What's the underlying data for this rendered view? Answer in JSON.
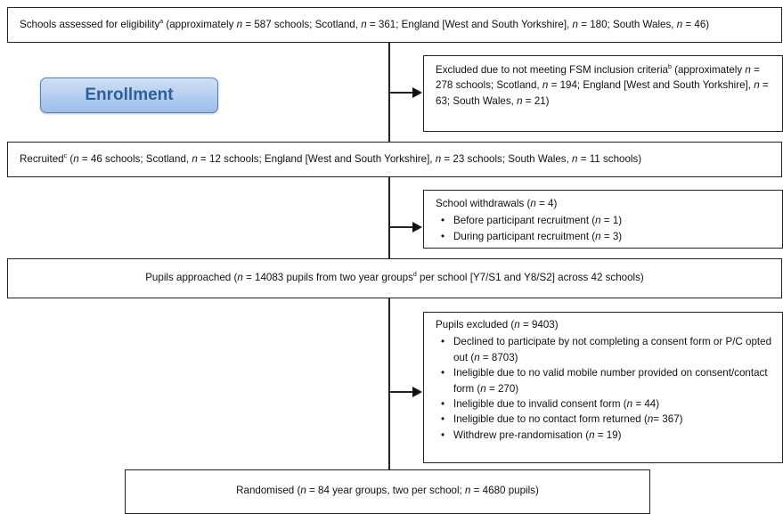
{
  "enrollment_label": "Enrollment",
  "assessed": {
    "pre": "Schools assessed for eligibility",
    "sup": "a",
    "body1": " (approximately ",
    "n_total": "587",
    "body2": " schools; Scotland, ",
    "n_scotland": "361",
    "body3": "; England [West and South Yorkshire], ",
    "n_england": "180",
    "body4": "; South Wales, ",
    "n_wales": "46",
    "tail": ")"
  },
  "excluded_fsm": {
    "pre": "Excluded due to not meeting FSM inclusion criteria",
    "sup": "b",
    "body1": " (approximately ",
    "n_total": "278",
    "body2": " schools; Scotland, ",
    "n_scotland": "194",
    "body3": "; England [West and South Yorkshire], ",
    "n_england": "63",
    "body4": "; South Wales, ",
    "n_wales": "21",
    "tail": ")"
  },
  "recruited": {
    "pre": "Recruited",
    "sup": "c",
    "body1": " (",
    "n_total": "46",
    "body2": " schools; Scotland, ",
    "n_scotland": "12",
    "body3": " schools; England [West and South Yorkshire], ",
    "n_england": "23",
    "body4": " schools; South Wales, ",
    "n_wales": "11",
    "tail": " schools)"
  },
  "withdrawals": {
    "title_pre": "School withdrawals (",
    "title_n": "4",
    "title_tail": ")",
    "items": [
      {
        "pre": "Before participant recruitment (",
        "n": "1",
        "tail": ")"
      },
      {
        "pre": "During participant recruitment (",
        "n": "3",
        "tail": ")"
      }
    ]
  },
  "approached": {
    "pre": "Pupils approached (",
    "n": "14083",
    "body": " pupils from two year groups",
    "sup": "d",
    "tail": " per school [Y7/S1 and Y8/S2] across 42 schools)"
  },
  "pupils_excluded": {
    "title_pre": "Pupils excluded (",
    "title_n": "9403",
    "title_tail": ")",
    "items": [
      {
        "pre": "Declined to participate by not completing a consent form or P/C opted out (",
        "n": "8703",
        "tail": ")"
      },
      {
        "pre": "Ineligible due to no valid mobile number provided on consent/contact form (",
        "n": "270",
        "tail": ")"
      },
      {
        "pre": "Ineligible due to invalid consent form (",
        "n": "44",
        "tail": ")"
      },
      {
        "pre": "Ineligible due to no contact form returned (",
        "n": "367",
        "tail": ")",
        "nosp": true
      },
      {
        "pre": "Withdrew pre-randomisation (",
        "n": "19",
        "tail": ")"
      }
    ]
  },
  "randomised": {
    "pre": "Randomised (",
    "n_groups": "84",
    "body": " year groups, two per school; ",
    "n_pupils": "4680",
    "tail": " pupils)"
  },
  "n_symbol": "n",
  "eq": " = "
}
